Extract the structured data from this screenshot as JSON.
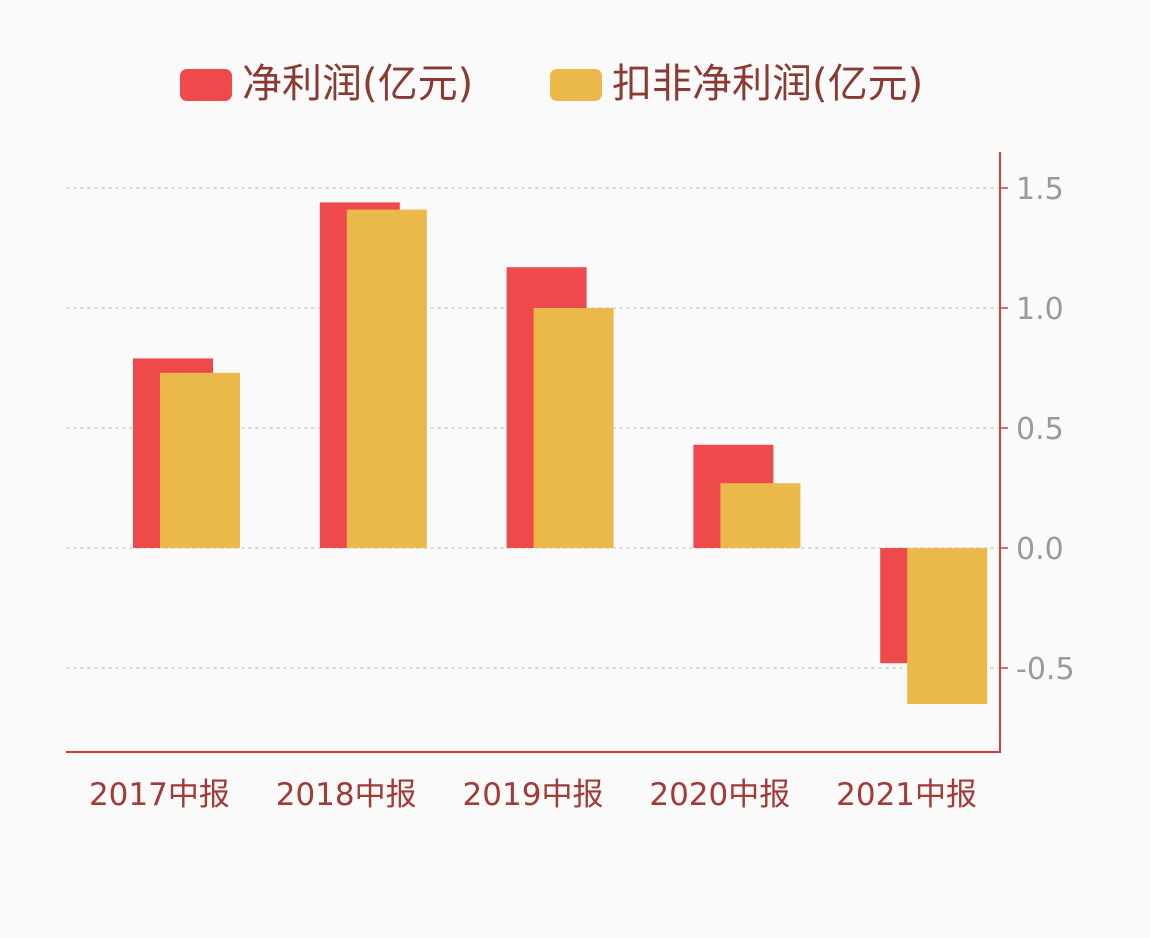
{
  "chart_data": {
    "type": "bar",
    "categories": [
      "2017中报",
      "2018中报",
      "2019中报",
      "2020中报",
      "2021中报"
    ],
    "series": [
      {
        "name": "净利润(亿元)",
        "values": [
          0.79,
          1.44,
          1.17,
          0.43,
          -0.48
        ],
        "color": "#ee4a4c"
      },
      {
        "name": "扣非净利润(亿元)",
        "values": [
          0.73,
          1.41,
          1.0,
          0.27,
          -0.65
        ],
        "color": "#ebb84a"
      }
    ],
    "y_axis": {
      "position": "right",
      "ticks": [
        1.5,
        1.0,
        0.5,
        0.0,
        -0.5
      ],
      "tick_labels": [
        "1.5",
        "1.0",
        "0.5",
        "0.0",
        "-0.5"
      ],
      "ylim": [
        -0.86,
        1.65
      ]
    },
    "legend_position": "top-center",
    "grid": true
  },
  "colors": {
    "axis": "#d63b3b",
    "category_label": "#a33a35",
    "legend_text": "#8a3a32",
    "tick_label": "#9a9a9a",
    "grid": "#cfcfcf",
    "background": "#fbfafb"
  }
}
